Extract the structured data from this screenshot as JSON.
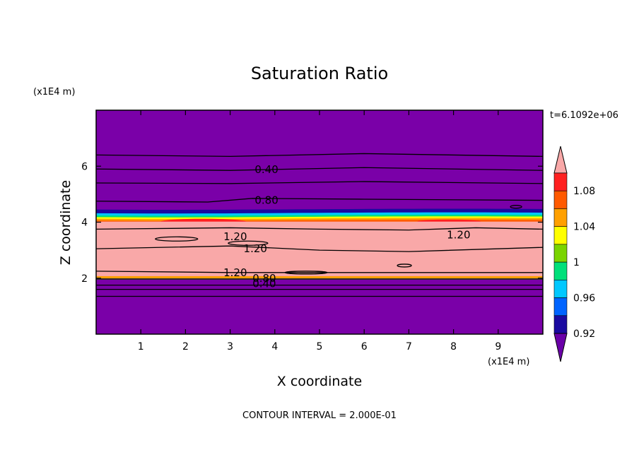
{
  "chart_data": {
    "type": "heatmap",
    "title": "Saturation Ratio",
    "xlabel": "X coordinate",
    "ylabel": "Z coordinate",
    "x_units": "(x1E4 m)",
    "y_units": "(x1E4 m)",
    "xlim": [
      0,
      10
    ],
    "ylim": [
      0,
      8
    ],
    "x_ticks": [
      "1",
      "2",
      "3",
      "4",
      "5",
      "6",
      "7",
      "8",
      "9"
    ],
    "y_ticks": [
      "2",
      "4",
      "6"
    ],
    "time_label": "t=6.1092e+06",
    "footer": "CONTOUR INTERVAL = 2.000E-01",
    "colorbar": {
      "labels": [
        "1.08",
        "1.04",
        "1",
        "0.96",
        "0.92"
      ],
      "levels": [
        0.92,
        0.94,
        0.96,
        0.98,
        1.0,
        1.02,
        1.04,
        1.06,
        1.08
      ],
      "colors": [
        "#6a00a8",
        "#1a0aa0",
        "#0064ff",
        "#00c8ff",
        "#00e07a",
        "#7ad400",
        "#ffff00",
        "#ffa000",
        "#ff5a00",
        "#ff2020",
        "#f9a8a8"
      ],
      "extend": "both"
    },
    "bands": [
      {
        "z_bottom": 4.35,
        "z_top": 8.0,
        "class": "below 0.92",
        "color": "#6a00a8"
      },
      {
        "z_bottom": 4.1,
        "z_top": 4.4,
        "class": "0.92-1.08 transition",
        "color": "#00c8ff"
      },
      {
        "z_bottom": 2.05,
        "z_top": 4.05,
        "class": "above 1.08",
        "color": "#f9a8a8"
      },
      {
        "z_bottom": 1.98,
        "z_top": 2.08,
        "class": "0.92-1.08 transition",
        "color": "#ffa000"
      },
      {
        "z_bottom": 0.0,
        "z_top": 2.0,
        "class": "below 0.92",
        "color": "#6a00a8"
      }
    ],
    "contour_labels": [
      "0.40",
      "0.80",
      "1.20",
      "1.20",
      "1.20",
      "1.20",
      "0.80",
      "0.40"
    ]
  }
}
